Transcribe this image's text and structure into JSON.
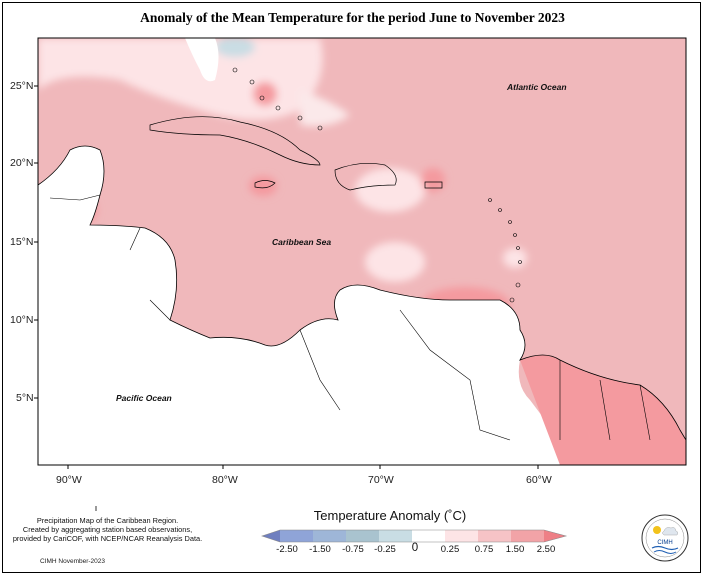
{
  "title": "Anomaly of the Mean Temperature for the period June to November 2023",
  "latitude_labels": [
    "25°N",
    "20°N",
    "15°N",
    "10°N",
    "5°N"
  ],
  "longitude_labels": [
    "90°W",
    "80°W",
    "70°W",
    "60°W"
  ],
  "place_labels": {
    "atlantic": "Atlantic Ocean",
    "caribbean": "Caribbean Sea",
    "pacific": "Pacific Ocean"
  },
  "legend": {
    "title": "Temperature Anomaly (˚C)",
    "values": [
      "-2.50",
      "-1.50",
      "-0.75",
      "-0.25",
      "0",
      "0.25",
      "0.75",
      "1.50",
      "2.50"
    ],
    "colors": [
      "#6f7fbf",
      "#8fa4d8",
      "#a9bcd4",
      "#c9dde4",
      "#ffffff",
      "#fde4e6",
      "#f6c3c6",
      "#f2a3a7",
      "#ee7f86"
    ]
  },
  "credit_lines": [
    "Precipitation Map of the Caribbean Region.",
    "Created by aggregating station based observations,",
    "provided by CariCOF, with NCEP/NCAR Reanalysis Data."
  ],
  "date_note": "CIMH November-2023",
  "logo_text": "CIMH",
  "colors": {
    "ocean_base": "#f0b8bb",
    "warm_patch": "#f49a9f",
    "cool_patch": "#fde4e6",
    "land": "#ffffff"
  }
}
